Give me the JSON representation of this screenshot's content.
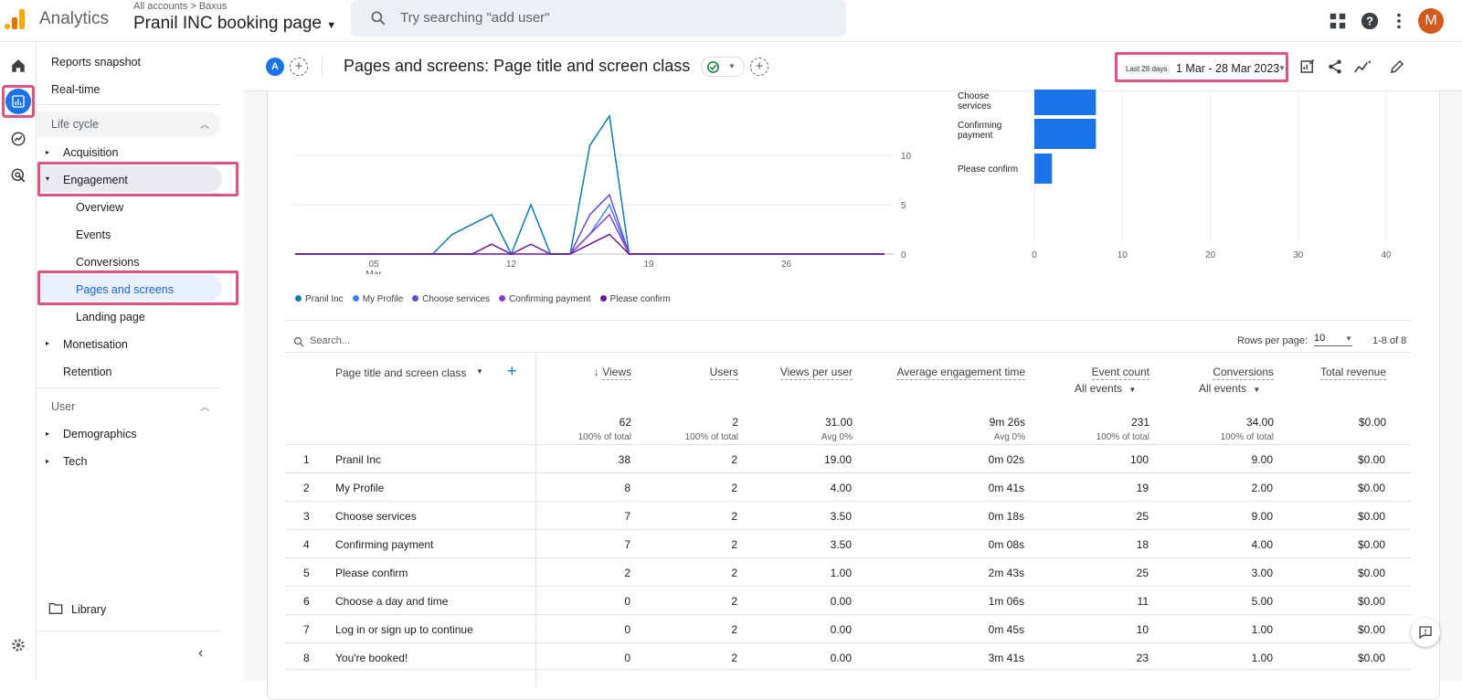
{
  "topbar": {
    "app_name": "Analytics",
    "breadcrumb": "All accounts > Baxus",
    "property": "Pranil INC booking page",
    "search_placeholder": "Try searching \"add user\"",
    "avatar_letter": "M"
  },
  "nav": {
    "reports_snapshot": "Reports snapshot",
    "realtime": "Real-time",
    "lifecycle": "Life cycle",
    "acquisition": "Acquisition",
    "engagement": "Engagement",
    "overview": "Overview",
    "events": "Events",
    "conversions": "Conversions",
    "pages_screens": "Pages and screens",
    "landing_page": "Landing page",
    "monetisation": "Monetisation",
    "retention": "Retention",
    "user": "User",
    "demographics": "Demographics",
    "tech": "Tech",
    "library": "Library"
  },
  "header": {
    "comparison_badge": "A",
    "title": "Pages and screens: Page title and screen class",
    "date_label": "Last 28 days",
    "date_range": "1 Mar - 28 Mar 2023"
  },
  "chart_data": [
    {
      "type": "line",
      "x_ticks": [
        "05\nMar",
        "12",
        "19",
        "26"
      ],
      "y_ticks": [
        "10",
        "5",
        "0"
      ],
      "series": [
        {
          "name": "Pranil Inc",
          "color": "#137aaa",
          "values": [
            0,
            0,
            0,
            0,
            0,
            0,
            0,
            0,
            2,
            3,
            4,
            0,
            5,
            0,
            0,
            11,
            14,
            0,
            0,
            0,
            0,
            0,
            0,
            0,
            0,
            0,
            0,
            0,
            0,
            0,
            0
          ]
        },
        {
          "name": "My Profile",
          "color": "#4285f4",
          "values": [
            0,
            0,
            0,
            0,
            0,
            0,
            0,
            0,
            0,
            0,
            0,
            0,
            0,
            0,
            0,
            2,
            5,
            0,
            0,
            0,
            0,
            0,
            0,
            0,
            0,
            0,
            0,
            0,
            0,
            0,
            0
          ]
        },
        {
          "name": "Choose services",
          "color": "#5a4fd6",
          "values": [
            0,
            0,
            0,
            0,
            0,
            0,
            0,
            0,
            0,
            0,
            0,
            0,
            0,
            0,
            0,
            4,
            6,
            0,
            0,
            0,
            0,
            0,
            0,
            0,
            0,
            0,
            0,
            0,
            0,
            0,
            0
          ]
        },
        {
          "name": "Confirming payment",
          "color": "#8b3fd1",
          "values": [
            0,
            0,
            0,
            0,
            0,
            0,
            0,
            0,
            0,
            0,
            0,
            0,
            0,
            0,
            0,
            2,
            4,
            0,
            0,
            0,
            0,
            0,
            0,
            0,
            0,
            0,
            0,
            0,
            0,
            0,
            0
          ]
        },
        {
          "name": "Please confirm",
          "color": "#6a1b9a",
          "values": [
            0,
            0,
            0,
            0,
            0,
            0,
            0,
            0,
            0,
            0,
            1,
            0,
            1,
            0,
            0,
            1,
            2,
            0,
            0,
            0,
            0,
            0,
            0,
            0,
            0,
            0,
            0,
            0,
            0,
            0,
            0
          ]
        }
      ]
    },
    {
      "type": "bar",
      "orientation": "horizontal",
      "categories": [
        "Choose services",
        "Confirming payment",
        "Please confirm"
      ],
      "values": [
        7,
        7,
        2
      ],
      "x_ticks": [
        "0",
        "10",
        "20",
        "30",
        "40"
      ],
      "xlim": [
        0,
        40
      ]
    }
  ],
  "table": {
    "search_placeholder": "Search...",
    "rows_per_page_label": "Rows per page:",
    "rows_per_page": "10",
    "pagination": "1-8 of 8",
    "dimension_header": "Page title and screen class",
    "headers": {
      "views": "Views",
      "users": "Users",
      "vpu": "Views per user",
      "aet": "Average engagement time",
      "events": "Event count",
      "conv": "Conversions",
      "rev": "Total revenue",
      "all_events": "All events"
    },
    "totals": {
      "views": "62",
      "views_sub": "100% of total",
      "users": "2",
      "users_sub": "100% of total",
      "vpu": "31.00",
      "vpu_sub": "Avg 0%",
      "aet": "9m 26s",
      "aet_sub": "Avg 0%",
      "events": "231",
      "events_sub": "100% of total",
      "conv": "34.00",
      "conv_sub": "100% of total",
      "rev": "$0.00"
    },
    "rows": [
      {
        "n": "1",
        "page": "Pranil Inc",
        "views": "38",
        "users": "2",
        "vpu": "19.00",
        "aet": "0m 02s",
        "events": "100",
        "conv": "9.00",
        "rev": "$0.00"
      },
      {
        "n": "2",
        "page": "My Profile",
        "views": "8",
        "users": "2",
        "vpu": "4.00",
        "aet": "0m 41s",
        "events": "19",
        "conv": "2.00",
        "rev": "$0.00"
      },
      {
        "n": "3",
        "page": "Choose services",
        "views": "7",
        "users": "2",
        "vpu": "3.50",
        "aet": "0m 18s",
        "events": "25",
        "conv": "9.00",
        "rev": "$0.00"
      },
      {
        "n": "4",
        "page": "Confirming payment",
        "views": "7",
        "users": "2",
        "vpu": "3.50",
        "aet": "0m 08s",
        "events": "18",
        "conv": "4.00",
        "rev": "$0.00"
      },
      {
        "n": "5",
        "page": "Please confirm",
        "views": "2",
        "users": "2",
        "vpu": "1.00",
        "aet": "2m 43s",
        "events": "25",
        "conv": "3.00",
        "rev": "$0.00"
      },
      {
        "n": "6",
        "page": "Choose a day and time",
        "views": "0",
        "users": "2",
        "vpu": "0.00",
        "aet": "1m 06s",
        "events": "11",
        "conv": "5.00",
        "rev": "$0.00"
      },
      {
        "n": "7",
        "page": "Log in or sign up to continue",
        "views": "0",
        "users": "2",
        "vpu": "0.00",
        "aet": "0m 45s",
        "events": "10",
        "conv": "1.00",
        "rev": "$0.00"
      },
      {
        "n": "8",
        "page": "You're booked!",
        "views": "0",
        "users": "2",
        "vpu": "0.00",
        "aet": "3m 41s",
        "events": "23",
        "conv": "1.00",
        "rev": "$0.00"
      }
    ]
  }
}
